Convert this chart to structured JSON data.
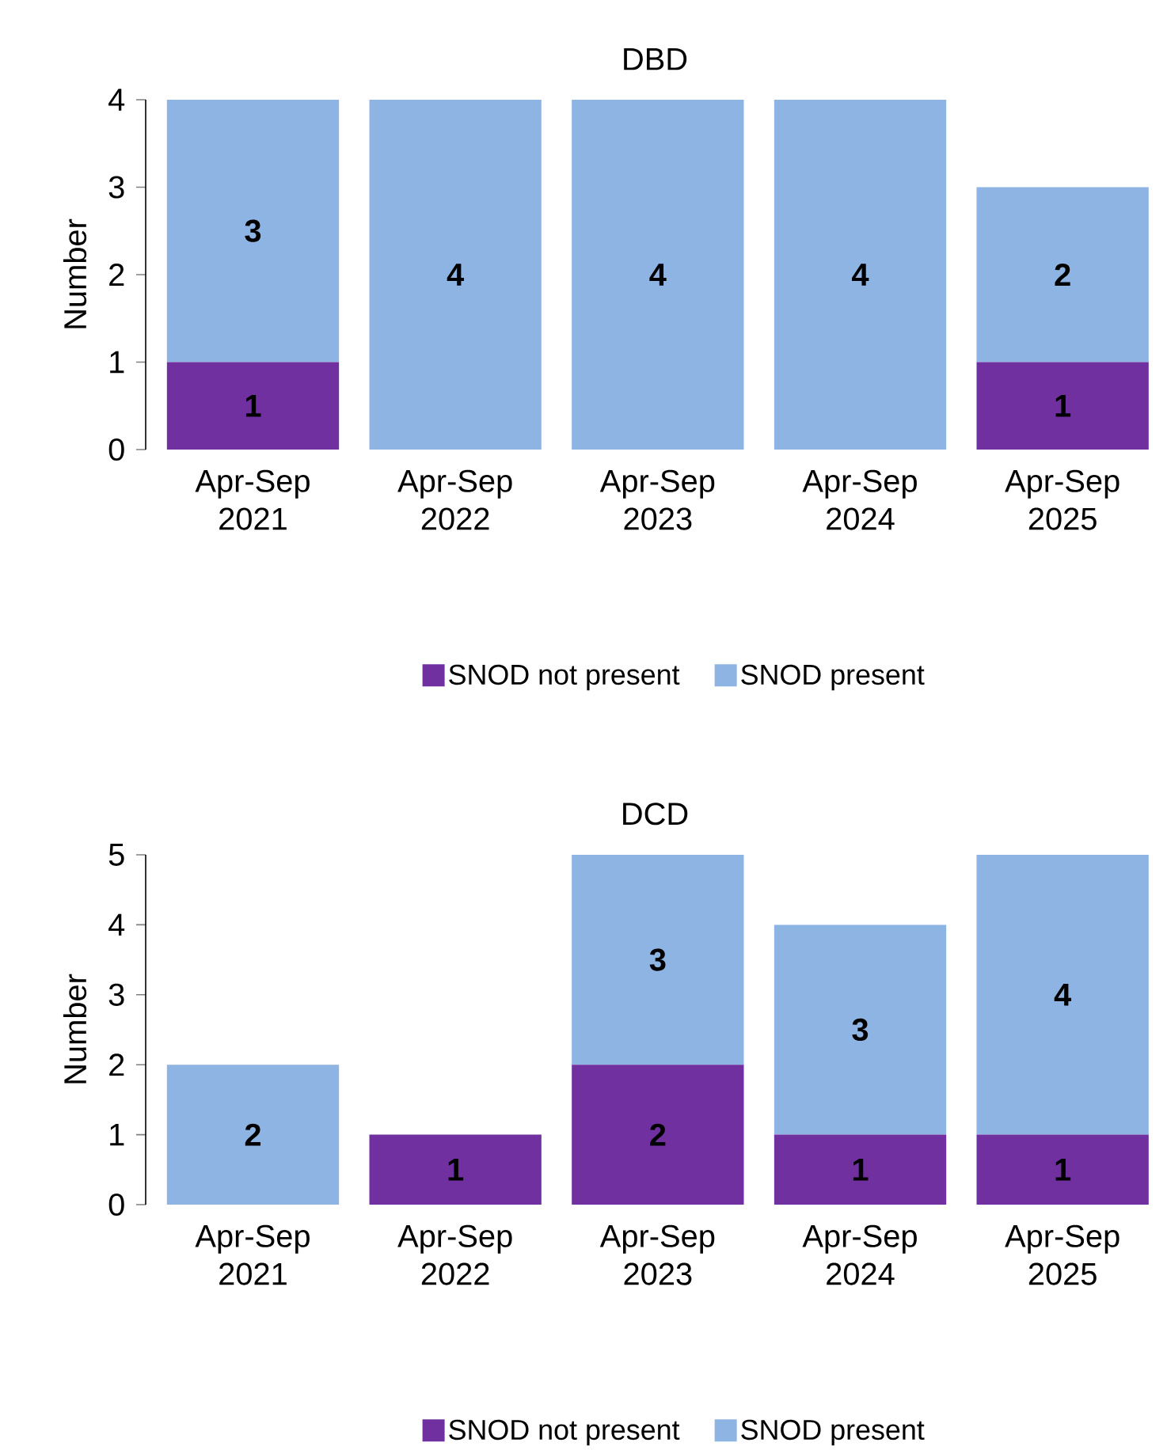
{
  "chart_data": [
    {
      "type": "bar",
      "title": "DBD",
      "ylabel": "Number",
      "stacked": true,
      "legend": "bottom",
      "ylim": [
        0,
        4
      ],
      "yticks": [
        0,
        1,
        2,
        3,
        4
      ],
      "categories": [
        "Apr-Sep 2021",
        "Apr-Sep 2022",
        "Apr-Sep 2023",
        "Apr-Sep 2024",
        "Apr-Sep 2025"
      ],
      "series": [
        {
          "name": "SNOD not present",
          "color": "#7030a0",
          "values": [
            1,
            0,
            0,
            0,
            1
          ],
          "value_labels": [
            "1",
            null,
            null,
            null,
            "1"
          ]
        },
        {
          "name": "SNOD present",
          "color": "#8eb4e3",
          "values": [
            3,
            4,
            4,
            4,
            2
          ],
          "value_labels": [
            "3",
            "4",
            "4",
            "4",
            "2"
          ]
        }
      ]
    },
    {
      "type": "bar",
      "title": "DCD",
      "ylabel": "Number",
      "stacked": true,
      "legend": "bottom",
      "ylim": [
        0,
        5
      ],
      "yticks": [
        0,
        1,
        2,
        3,
        4,
        5
      ],
      "categories": [
        "Apr-Sep 2021",
        "Apr-Sep 2022",
        "Apr-Sep 2023",
        "Apr-Sep 2024",
        "Apr-Sep 2025"
      ],
      "series": [
        {
          "name": "SNOD not present",
          "color": "#7030a0",
          "values": [
            0,
            1,
            2,
            1,
            1
          ],
          "value_labels": [
            null,
            "1",
            "2",
            "1",
            "1"
          ]
        },
        {
          "name": "SNOD present",
          "color": "#8eb4e3",
          "values": [
            2,
            0,
            3,
            3,
            4
          ],
          "value_labels": [
            "2",
            null,
            "3",
            "3",
            "4"
          ]
        }
      ]
    }
  ]
}
